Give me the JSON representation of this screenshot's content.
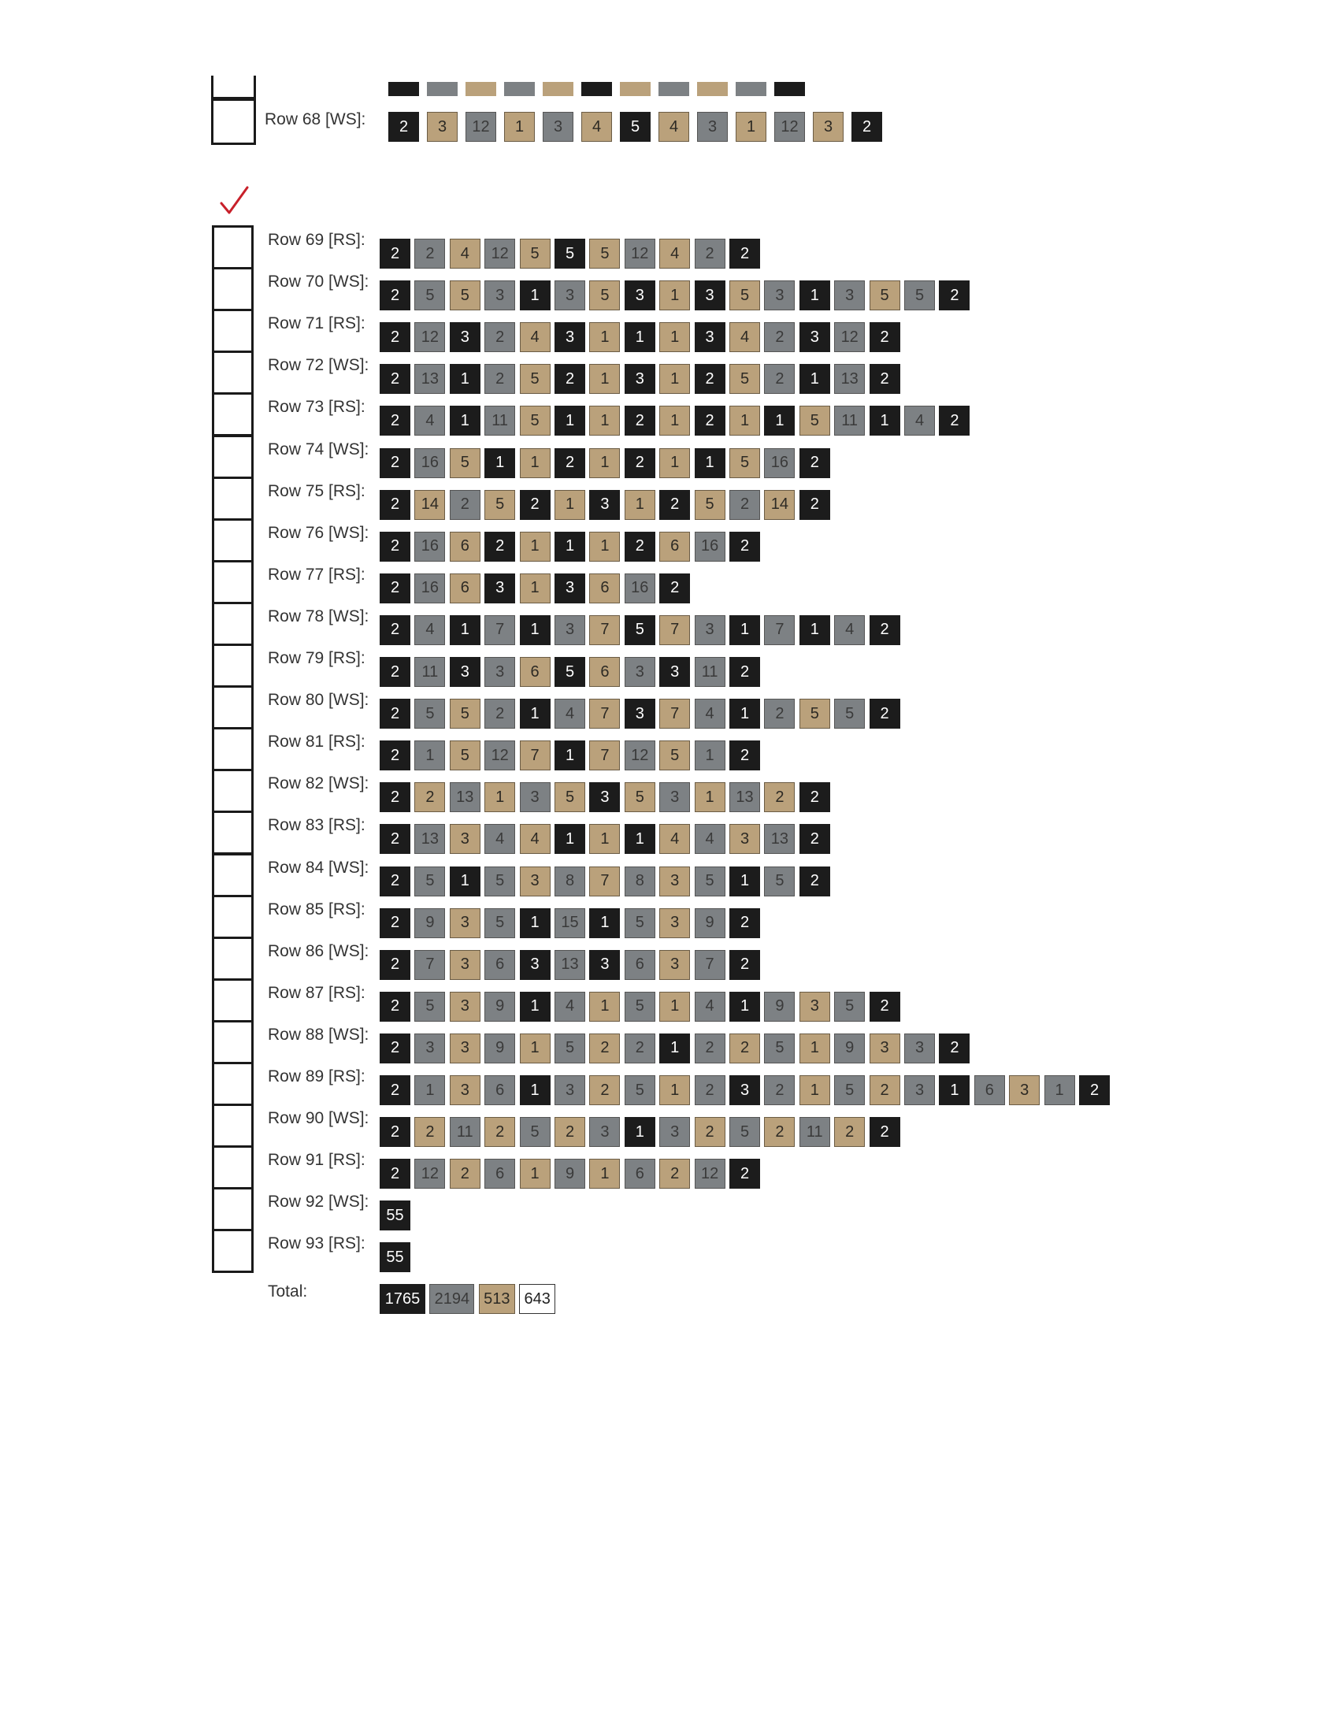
{
  "row68": {
    "label": "Row 68 [WS]:",
    "values": [
      2,
      3,
      12,
      1,
      3,
      4,
      5,
      4,
      3,
      1,
      12,
      3,
      2
    ],
    "colors": [
      "black",
      "tan",
      "gray",
      "tan",
      "gray",
      "tan",
      "black",
      "tan",
      "gray",
      "tan",
      "gray",
      "tan",
      "black"
    ]
  },
  "rows": [
    {
      "label": "Row 69 [RS]:",
      "values": [
        2,
        2,
        4,
        12,
        5,
        5,
        5,
        12,
        4,
        2,
        2
      ],
      "colors": [
        "black",
        "gray",
        "tan",
        "gray",
        "tan",
        "black",
        "tan",
        "gray",
        "tan",
        "gray",
        "black"
      ]
    },
    {
      "label": "Row 70 [WS]:",
      "values": [
        2,
        5,
        5,
        3,
        1,
        3,
        5,
        3,
        1,
        3,
        5,
        3,
        1,
        3,
        5,
        5,
        2
      ],
      "colors": [
        "black",
        "gray",
        "tan",
        "gray",
        "black",
        "gray",
        "tan",
        "black",
        "tan",
        "black",
        "tan",
        "gray",
        "black",
        "gray",
        "tan",
        "gray",
        "black"
      ]
    },
    {
      "label": "Row 71 [RS]:",
      "values": [
        2,
        12,
        3,
        2,
        4,
        3,
        1,
        1,
        1,
        3,
        4,
        2,
        3,
        12,
        2
      ],
      "colors": [
        "black",
        "gray",
        "black",
        "gray",
        "tan",
        "black",
        "tan",
        "black",
        "tan",
        "black",
        "tan",
        "gray",
        "black",
        "gray",
        "black"
      ]
    },
    {
      "label": "Row 72 [WS]:",
      "values": [
        2,
        13,
        1,
        2,
        5,
        2,
        1,
        3,
        1,
        2,
        5,
        2,
        1,
        13,
        2
      ],
      "colors": [
        "black",
        "gray",
        "black",
        "gray",
        "tan",
        "black",
        "tan",
        "black",
        "tan",
        "black",
        "tan",
        "gray",
        "black",
        "gray",
        "black"
      ]
    },
    {
      "label": "Row 73 [RS]:",
      "values": [
        2,
        4,
        1,
        11,
        5,
        1,
        1,
        2,
        1,
        2,
        1,
        1,
        5,
        11,
        1,
        4,
        2
      ],
      "colors": [
        "black",
        "gray",
        "black",
        "gray",
        "tan",
        "black",
        "tan",
        "black",
        "tan",
        "black",
        "tan",
        "black",
        "tan",
        "gray",
        "black",
        "gray",
        "black"
      ]
    },
    {
      "label": "Row 74 [WS]:",
      "values": [
        2,
        16,
        5,
        1,
        1,
        2,
        1,
        2,
        1,
        1,
        5,
        16,
        2
      ],
      "colors": [
        "black",
        "gray",
        "tan",
        "black",
        "tan",
        "black",
        "tan",
        "black",
        "tan",
        "black",
        "tan",
        "gray",
        "black"
      ]
    },
    {
      "label": "Row 75 [RS]:",
      "values": [
        2,
        14,
        2,
        5,
        2,
        1,
        3,
        1,
        2,
        5,
        2,
        14,
        2
      ],
      "colors": [
        "black",
        "tan",
        "gray",
        "tan",
        "black",
        "tan",
        "black",
        "tan",
        "black",
        "tan",
        "gray",
        "tan",
        "black"
      ]
    },
    {
      "label": "Row 76 [WS]:",
      "values": [
        2,
        16,
        6,
        2,
        1,
        1,
        1,
        2,
        6,
        16,
        2
      ],
      "colors": [
        "black",
        "gray",
        "tan",
        "black",
        "tan",
        "black",
        "tan",
        "black",
        "tan",
        "gray",
        "black"
      ]
    },
    {
      "label": "Row 77 [RS]:",
      "values": [
        2,
        16,
        6,
        3,
        1,
        3,
        6,
        16,
        2
      ],
      "colors": [
        "black",
        "gray",
        "tan",
        "black",
        "tan",
        "black",
        "tan",
        "gray",
        "black"
      ]
    },
    {
      "label": "Row 78 [WS]:",
      "values": [
        2,
        4,
        1,
        7,
        1,
        3,
        7,
        5,
        7,
        3,
        1,
        7,
        1,
        4,
        2
      ],
      "colors": [
        "black",
        "gray",
        "black",
        "gray",
        "black",
        "gray",
        "tan",
        "black",
        "tan",
        "gray",
        "black",
        "gray",
        "black",
        "gray",
        "black"
      ]
    },
    {
      "label": "Row 79 [RS]:",
      "values": [
        2,
        11,
        3,
        3,
        6,
        5,
        6,
        3,
        3,
        11,
        2
      ],
      "colors": [
        "black",
        "gray",
        "black",
        "gray",
        "tan",
        "black",
        "tan",
        "gray",
        "black",
        "gray",
        "black"
      ]
    },
    {
      "label": "Row 80 [WS]:",
      "values": [
        2,
        5,
        5,
        2,
        1,
        4,
        7,
        3,
        7,
        4,
        1,
        2,
        5,
        5,
        2
      ],
      "colors": [
        "black",
        "gray",
        "tan",
        "gray",
        "black",
        "gray",
        "tan",
        "black",
        "tan",
        "gray",
        "black",
        "gray",
        "tan",
        "gray",
        "black"
      ]
    },
    {
      "label": "Row 81 [RS]:",
      "values": [
        2,
        1,
        5,
        12,
        7,
        1,
        7,
        12,
        5,
        1,
        2
      ],
      "colors": [
        "black",
        "gray",
        "tan",
        "gray",
        "tan",
        "black",
        "tan",
        "gray",
        "tan",
        "gray",
        "black"
      ]
    },
    {
      "label": "Row 82 [WS]:",
      "values": [
        2,
        2,
        13,
        1,
        3,
        5,
        3,
        5,
        3,
        1,
        13,
        2,
        2
      ],
      "colors": [
        "black",
        "tan",
        "gray",
        "tan",
        "gray",
        "tan",
        "black",
        "tan",
        "gray",
        "tan",
        "gray",
        "tan",
        "black"
      ]
    },
    {
      "label": "Row 83 [RS]:",
      "values": [
        2,
        13,
        3,
        4,
        4,
        1,
        1,
        1,
        4,
        4,
        3,
        13,
        2
      ],
      "colors": [
        "black",
        "gray",
        "tan",
        "gray",
        "tan",
        "black",
        "tan",
        "black",
        "tan",
        "gray",
        "tan",
        "gray",
        "black"
      ]
    },
    {
      "label": "Row 84 [WS]:",
      "values": [
        2,
        5,
        1,
        5,
        3,
        8,
        7,
        8,
        3,
        5,
        1,
        5,
        2
      ],
      "colors": [
        "black",
        "gray",
        "black",
        "gray",
        "tan",
        "gray",
        "tan",
        "gray",
        "tan",
        "gray",
        "black",
        "gray",
        "black"
      ]
    },
    {
      "label": "Row 85 [RS]:",
      "values": [
        2,
        9,
        3,
        5,
        1,
        15,
        1,
        5,
        3,
        9,
        2
      ],
      "colors": [
        "black",
        "gray",
        "tan",
        "gray",
        "black",
        "gray",
        "black",
        "gray",
        "tan",
        "gray",
        "black"
      ]
    },
    {
      "label": "Row 86 [WS]:",
      "values": [
        2,
        7,
        3,
        6,
        3,
        13,
        3,
        6,
        3,
        7,
        2
      ],
      "colors": [
        "black",
        "gray",
        "tan",
        "gray",
        "black",
        "gray",
        "black",
        "gray",
        "tan",
        "gray",
        "black"
      ]
    },
    {
      "label": "Row 87 [RS]:",
      "values": [
        2,
        5,
        3,
        9,
        1,
        4,
        1,
        5,
        1,
        4,
        1,
        9,
        3,
        5,
        2
      ],
      "colors": [
        "black",
        "gray",
        "tan",
        "gray",
        "black",
        "gray",
        "tan",
        "gray",
        "tan",
        "gray",
        "black",
        "gray",
        "tan",
        "gray",
        "black"
      ]
    },
    {
      "label": "Row 88 [WS]:",
      "values": [
        2,
        3,
        3,
        9,
        1,
        5,
        2,
        2,
        1,
        2,
        2,
        5,
        1,
        9,
        3,
        3,
        2
      ],
      "colors": [
        "black",
        "gray",
        "tan",
        "gray",
        "tan",
        "gray",
        "tan",
        "gray",
        "black",
        "gray",
        "tan",
        "gray",
        "tan",
        "gray",
        "tan",
        "gray",
        "black"
      ]
    },
    {
      "label": "Row 89 [RS]:",
      "values": [
        2,
        1,
        3,
        6,
        1,
        3,
        2,
        5,
        1,
        2,
        3,
        2,
        1,
        5,
        2,
        3,
        1,
        6,
        3,
        1,
        2
      ],
      "colors": [
        "black",
        "gray",
        "tan",
        "gray",
        "black",
        "gray",
        "tan",
        "gray",
        "tan",
        "gray",
        "black",
        "gray",
        "tan",
        "gray",
        "tan",
        "gray",
        "black",
        "gray",
        "tan",
        "gray",
        "black"
      ]
    },
    {
      "label": "Row 90 [WS]:",
      "values": [
        2,
        2,
        11,
        2,
        5,
        2,
        3,
        1,
        3,
        2,
        5,
        2,
        11,
        2,
        2
      ],
      "colors": [
        "black",
        "tan",
        "gray",
        "tan",
        "gray",
        "tan",
        "gray",
        "black",
        "gray",
        "tan",
        "gray",
        "tan",
        "gray",
        "tan",
        "black"
      ]
    },
    {
      "label": "Row 91 [RS]:",
      "values": [
        2,
        12,
        2,
        6,
        1,
        9,
        1,
        6,
        2,
        12,
        2
      ],
      "colors": [
        "black",
        "gray",
        "tan",
        "gray",
        "tan",
        "gray",
        "tan",
        "gray",
        "tan",
        "gray",
        "black"
      ]
    },
    {
      "label": "Row 92 [WS]:",
      "values": [
        55
      ],
      "colors": [
        "black"
      ]
    },
    {
      "label": "Row 93 [RS]:",
      "values": [
        55
      ],
      "colors": [
        "black"
      ]
    }
  ],
  "total": {
    "label": "Total:",
    "values": [
      1765,
      2194,
      513,
      643
    ],
    "colors": [
      "black",
      "gray",
      "tan",
      "white"
    ]
  }
}
